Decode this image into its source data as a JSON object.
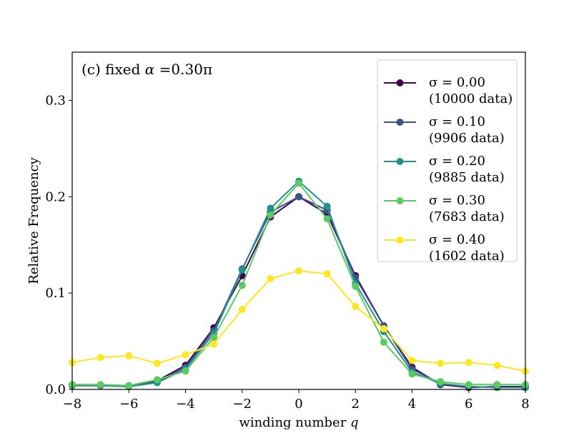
{
  "chart_data": {
    "type": "line",
    "annotation": {
      "prefix": "(c) fixed ",
      "symbol": "α",
      "suffix": " =0.30π"
    },
    "xlabel": {
      "text": "winding number ",
      "var": "q"
    },
    "ylabel": "Relative Frequency",
    "xlim": [
      -8,
      8
    ],
    "ylim": [
      0,
      0.35
    ],
    "xticks": [
      -8,
      -6,
      -4,
      -2,
      0,
      2,
      4,
      6,
      8
    ],
    "xtick_labels": [
      "−8",
      "−6",
      "−4",
      "−2",
      "0",
      "2",
      "4",
      "6",
      "8"
    ],
    "yticks": [
      0,
      0.1,
      0.2,
      0.3
    ],
    "ytick_labels": [
      "0.0",
      "0.1",
      "0.2",
      "0.3"
    ],
    "grid": false,
    "legend_position": "top-right",
    "x": [
      -8,
      -7,
      -6,
      -5,
      -4,
      -3,
      -2,
      -1,
      0,
      1,
      2,
      3,
      4,
      5,
      6,
      7,
      8
    ],
    "series": [
      {
        "name": "σ = 0.00",
        "count_label": "(10000 data)",
        "color": "#440154",
        "values": [
          0.004,
          0.004,
          0.004,
          0.009,
          0.025,
          0.064,
          0.118,
          0.179,
          0.2,
          0.182,
          0.118,
          0.066,
          0.023,
          0.005,
          0.002,
          0.003,
          0.003
        ]
      },
      {
        "name": "σ = 0.10",
        "count_label": "(9906 data)",
        "color": "#3b528b",
        "values": [
          0.004,
          0.004,
          0.003,
          0.008,
          0.023,
          0.061,
          0.125,
          0.184,
          0.2,
          0.186,
          0.116,
          0.066,
          0.021,
          0.006,
          0.003,
          0.002,
          0.002
        ]
      },
      {
        "name": "σ = 0.20",
        "count_label": "(9885 data)",
        "color": "#21918c",
        "values": [
          0.004,
          0.004,
          0.003,
          0.007,
          0.021,
          0.058,
          0.124,
          0.188,
          0.216,
          0.19,
          0.11,
          0.06,
          0.018,
          0.006,
          0.003,
          0.002,
          0.002
        ]
      },
      {
        "name": "σ = 0.30",
        "count_label": "(7683 data)",
        "color": "#5ec962",
        "values": [
          0.005,
          0.005,
          0.004,
          0.01,
          0.019,
          0.054,
          0.108,
          0.181,
          0.214,
          0.177,
          0.107,
          0.049,
          0.016,
          0.008,
          0.005,
          0.005,
          0.005
        ]
      },
      {
        "name": "σ = 0.40",
        "count_label": "(1602 data)",
        "color": "#fde725",
        "values": [
          0.028,
          0.033,
          0.035,
          0.027,
          0.036,
          0.047,
          0.083,
          0.115,
          0.123,
          0.12,
          0.086,
          0.063,
          0.03,
          0.027,
          0.028,
          0.025,
          0.019
        ]
      }
    ]
  }
}
